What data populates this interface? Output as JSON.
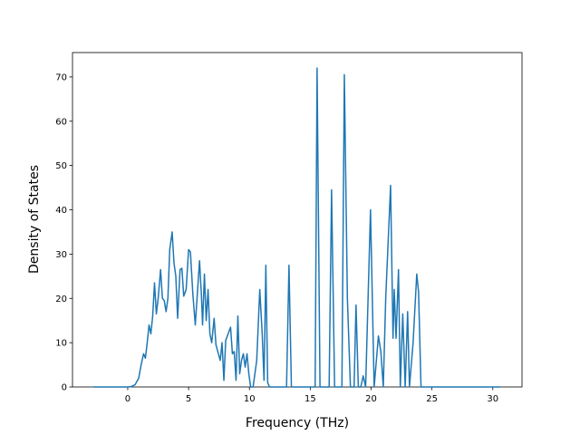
{
  "chart_data": {
    "type": "line",
    "x_label": "Frequency (THz)",
    "y_label": "Density of States",
    "xlim": [
      -4.54,
      32.4
    ],
    "ylim": [
      0,
      75.5
    ],
    "xticks": [
      0,
      5,
      10,
      15,
      20,
      25,
      30
    ],
    "yticks": [
      0,
      10,
      20,
      30,
      40,
      50,
      60,
      70
    ],
    "series": [
      {
        "color": "#1f77b4",
        "x": [
          -2.8,
          0,
          0.3,
          0.6,
          0.9,
          1.1,
          1.3,
          1.45,
          1.6,
          1.75,
          1.9,
          2.05,
          2.2,
          2.35,
          2.5,
          2.7,
          2.85,
          3.0,
          3.15,
          3.3,
          3.45,
          3.65,
          3.8,
          3.95,
          4.1,
          4.3,
          4.45,
          4.6,
          4.8,
          5.0,
          5.15,
          5.35,
          5.55,
          5.9,
          6.05,
          6.15,
          6.3,
          6.45,
          6.6,
          6.75,
          6.9,
          7.1,
          7.25,
          7.4,
          7.6,
          7.75,
          7.9,
          8.05,
          8.25,
          8.45,
          8.6,
          8.75,
          8.9,
          9.05,
          9.2,
          9.35,
          9.5,
          9.65,
          9.8,
          9.95,
          10.1,
          10.3,
          10.6,
          10.85,
          11.05,
          11.2,
          11.35,
          11.5,
          11.65,
          13.05,
          13.25,
          13.45,
          15.4,
          15.56,
          15.8,
          16.55,
          16.75,
          17.0,
          17.6,
          17.8,
          18.05,
          18.3,
          18.6,
          18.76,
          18.95,
          19.15,
          19.35,
          19.55,
          19.95,
          20.1,
          20.25,
          20.6,
          20.8,
          21.0,
          21.2,
          21.6,
          21.8,
          21.9,
          22.05,
          22.25,
          22.4,
          22.6,
          22.8,
          23.0,
          23.15,
          23.45,
          23.75,
          23.9,
          24.1,
          30.6
        ],
        "values": [
          0,
          0,
          0.1,
          0.5,
          2,
          5,
          7.5,
          6.5,
          10,
          14,
          12,
          16,
          23.5,
          16.5,
          20,
          26.5,
          20,
          19.5,
          17,
          20,
          31,
          35,
          28,
          25,
          15.5,
          26.5,
          26.8,
          20.5,
          22,
          31,
          30.5,
          21,
          14,
          28.5,
          21,
          14,
          25.5,
          15,
          22,
          12,
          10,
          15.5,
          9.5,
          8,
          6,
          10,
          1.5,
          10.5,
          12,
          13.5,
          7.5,
          8,
          1.5,
          16,
          3,
          6,
          7.5,
          4.5,
          7.5,
          3,
          0,
          0,
          6,
          22,
          12,
          1.5,
          27.5,
          1,
          0,
          0,
          27.5,
          0,
          0,
          72,
          0,
          0,
          44.5,
          0,
          0,
          70.5,
          20,
          0,
          0,
          18.5,
          0,
          0,
          2.5,
          0,
          40,
          20,
          0,
          11.5,
          8,
          0,
          20,
          45.5,
          11,
          22,
          11,
          26.5,
          0,
          16.5,
          0,
          17,
          0,
          10,
          25.5,
          21.5,
          0,
          0
        ]
      }
    ]
  }
}
